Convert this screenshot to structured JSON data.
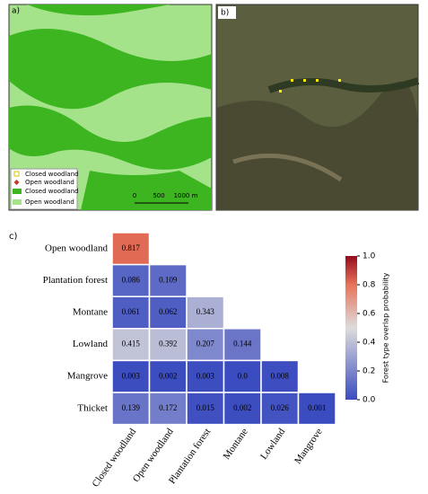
{
  "panels": {
    "a": {
      "label": "a)",
      "legend": [
        "Closed woodland",
        "Open woodland",
        "Closed woodland",
        "Open woodland"
      ],
      "scale_labels": [
        "0",
        "500",
        "1000 m"
      ]
    },
    "b": {
      "label": "b)"
    }
  },
  "chart_data": {
    "type": "heatmap",
    "label": "c)",
    "rows": [
      "Open woodland",
      "Plantation forest",
      "Montane",
      "Lowland",
      "Mangrove",
      "Thicket"
    ],
    "columns": [
      "Closed woodland",
      "Open woodland",
      "Plantation forest",
      "Montane",
      "Lowland",
      "Mangrove"
    ],
    "values": [
      [
        0.817
      ],
      [
        0.086,
        0.109
      ],
      [
        0.061,
        0.062,
        0.343
      ],
      [
        0.415,
        0.392,
        0.207,
        0.144
      ],
      [
        0.003,
        0.002,
        0.003,
        0,
        0.008
      ],
      [
        0.139,
        0.172,
        0.015,
        0.002,
        0.026,
        0.001
      ]
    ],
    "value_labels": [
      [
        "0.817"
      ],
      [
        "0.086",
        "0.109"
      ],
      [
        "0.061",
        "0.062",
        "0.343"
      ],
      [
        "0.415",
        "0.392",
        "0.207",
        "0.144"
      ],
      [
        "0.003",
        "0.002",
        "0.003",
        "0.0",
        "0.008"
      ],
      [
        "0.139",
        "0.172",
        "0.015",
        "0.002",
        "0.026",
        "0.001"
      ]
    ],
    "colormap": "coolwarm",
    "clim": [
      0,
      1
    ],
    "colorbar_ticks": [
      {
        "value": 0,
        "label": "0.0"
      },
      0.2,
      0.4,
      0.6,
      0.8,
      {
        "value": 1,
        "label": "1.0"
      }
    ],
    "colorbar_label": "Forest type overlap probability"
  }
}
